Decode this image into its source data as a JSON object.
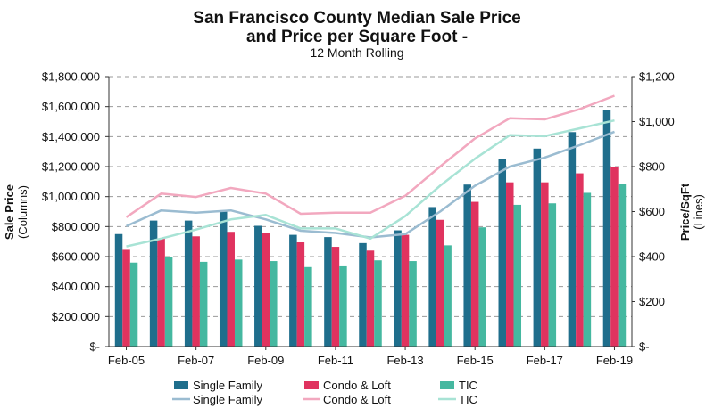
{
  "chart_data": {
    "type": "bar",
    "title_line1": "San Francisco County Median Sale Price",
    "title_line2": "and Price per Square Foot -",
    "subtitle": "12 Month Rolling",
    "y_left_label_main": "Sale Price",
    "y_left_label_sub": "(Columns)",
    "y_right_label_main": "Price/SqFt",
    "y_right_label_sub": "(Lines)",
    "y_left_range": [
      0,
      1800000
    ],
    "y_right_range": [
      0,
      1200
    ],
    "y_left_ticks": [
      "$-",
      "$200,000",
      "$400,000",
      "$600,000",
      "$800,000",
      "$1,000,000",
      "$1,200,000",
      "$1,400,000",
      "$1,600,000",
      "$1,800,000"
    ],
    "y_right_ticks": [
      "$-",
      "$200",
      "$400",
      "$600",
      "$800",
      "$1,000",
      "$1,200"
    ],
    "x_tick_labels": [
      "Feb-05",
      "Feb-07",
      "Feb-09",
      "Feb-11",
      "Feb-13",
      "Feb-15",
      "Feb-17",
      "Feb-19"
    ],
    "grid": "horizontal dashed",
    "legend_position": "bottom",
    "periods": [
      "Feb-05",
      "Feb-06",
      "Feb-07",
      "Feb-08",
      "Feb-09",
      "Feb-10",
      "Feb-11",
      "Feb-12",
      "Feb-13",
      "Feb-14",
      "Feb-15",
      "Feb-16",
      "Feb-17",
      "Feb-18",
      "Feb-19"
    ],
    "bar_series": [
      {
        "name": "Single Family",
        "color": "#1f6e8c",
        "values": [
          750000,
          840000,
          840000,
          900000,
          805000,
          745000,
          730000,
          690000,
          775000,
          930000,
          1080000,
          1250000,
          1320000,
          1430000,
          1575000
        ]
      },
      {
        "name": "Condo & Loft",
        "color": "#e0335f",
        "values": [
          645000,
          720000,
          735000,
          765000,
          755000,
          695000,
          665000,
          640000,
          745000,
          845000,
          965000,
          1095000,
          1095000,
          1155000,
          1200000
        ]
      },
      {
        "name": "TIC",
        "color": "#45b8a0",
        "values": [
          560000,
          600000,
          565000,
          580000,
          570000,
          530000,
          535000,
          575000,
          570000,
          675000,
          795000,
          945000,
          955000,
          1025000,
          1085000
        ]
      }
    ],
    "line_series": [
      {
        "name": "Single Family",
        "color": "#9bbcd1",
        "values": [
          535,
          605,
          595,
          605,
          565,
          515,
          505,
          485,
          500,
          600,
          715,
          800,
          840,
          895,
          955
        ]
      },
      {
        "name": "Condo & Loft",
        "color": "#f2a8bf",
        "values": [
          575,
          680,
          665,
          705,
          680,
          590,
          595,
          595,
          670,
          800,
          925,
          1015,
          1010,
          1055,
          1115
        ]
      },
      {
        "name": "TIC",
        "color": "#a8e3d5",
        "values": [
          445,
          480,
          520,
          565,
          585,
          525,
          525,
          480,
          580,
          715,
          835,
          940,
          935,
          970,
          1005
        ]
      }
    ]
  }
}
